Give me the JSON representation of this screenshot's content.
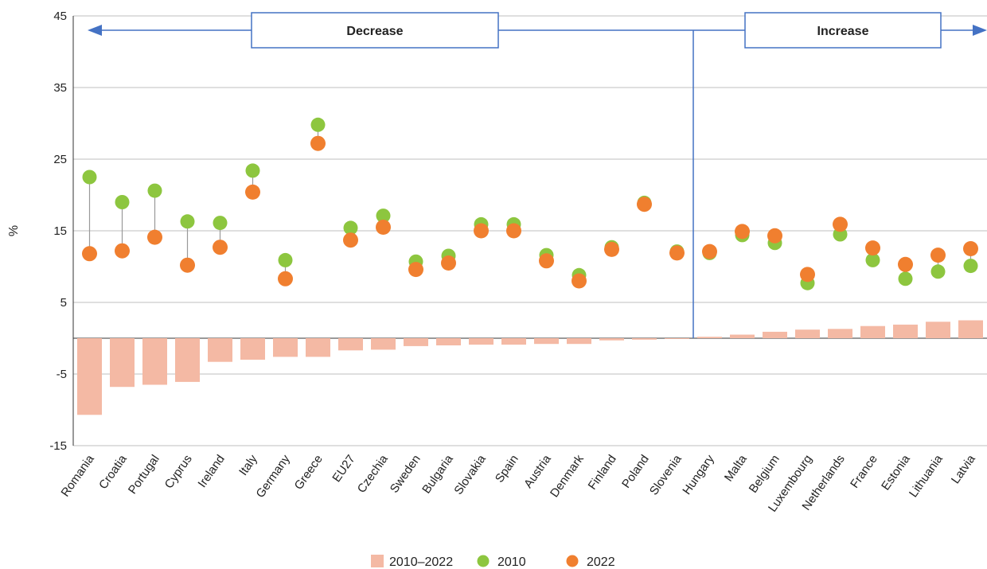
{
  "chart_data": {
    "type": "bar",
    "ylabel": "%",
    "ylim": [
      -15,
      45
    ],
    "yticks": [
      45,
      35,
      25,
      15,
      5,
      -5,
      -15
    ],
    "grid": true,
    "categories": [
      "Romania",
      "Croatia",
      "Portugal",
      "Cyprus",
      "Ireland",
      "Italy",
      "Germany",
      "Greece",
      "EU27",
      "Czechia",
      "Sweden",
      "Bulgaria",
      "Slovakia",
      "Spain",
      "Austria",
      "Denmark",
      "Finland",
      "Poland",
      "Slovenia",
      "Hungary",
      "Malta",
      "Belgium",
      "Luxembourg",
      "Netherlands",
      "France",
      "Estonia",
      "Lithuania",
      "Latvia"
    ],
    "series": [
      {
        "name": "2010–2022",
        "type": "bar",
        "color": "#f4b9a4",
        "values": [
          -10.7,
          -6.8,
          -6.5,
          -6.1,
          -3.3,
          -3.0,
          -2.6,
          -2.6,
          -1.7,
          -1.6,
          -1.1,
          -1.0,
          -0.9,
          -0.9,
          -0.8,
          -0.8,
          -0.3,
          -0.2,
          -0.1,
          0.2,
          0.5,
          0.9,
          1.2,
          1.3,
          1.7,
          1.9,
          2.3,
          2.5
        ]
      },
      {
        "name": "2010",
        "type": "scatter",
        "color": "#8dc63f",
        "values": [
          22.5,
          19.0,
          20.6,
          16.3,
          16.1,
          23.4,
          10.9,
          29.8,
          15.4,
          17.1,
          10.7,
          11.5,
          15.9,
          15.9,
          11.6,
          8.8,
          12.7,
          18.9,
          12.1,
          11.9,
          14.4,
          13.3,
          7.7,
          14.5,
          10.9,
          8.3,
          9.3,
          10.1
        ]
      },
      {
        "name": "2022",
        "type": "scatter",
        "color": "#f07f2f",
        "values": [
          11.8,
          12.2,
          14.1,
          10.2,
          12.7,
          20.4,
          8.3,
          27.2,
          13.7,
          15.5,
          9.6,
          10.5,
          15.0,
          15.0,
          10.8,
          8.0,
          12.4,
          18.7,
          11.9,
          12.1,
          14.9,
          14.3,
          8.9,
          15.9,
          12.6,
          10.3,
          11.6,
          12.5
        ]
      }
    ],
    "annotations": {
      "decrease": "Decrease",
      "increase": "Increase"
    },
    "legend": {
      "position": "bottom"
    },
    "colors": {
      "bar": "#f4b9a4",
      "dot2010": "#8dc63f",
      "dot2022": "#f07f2f",
      "arrow": "#4472c4",
      "connector": "#999999",
      "grid": "#bfbfbf"
    }
  }
}
